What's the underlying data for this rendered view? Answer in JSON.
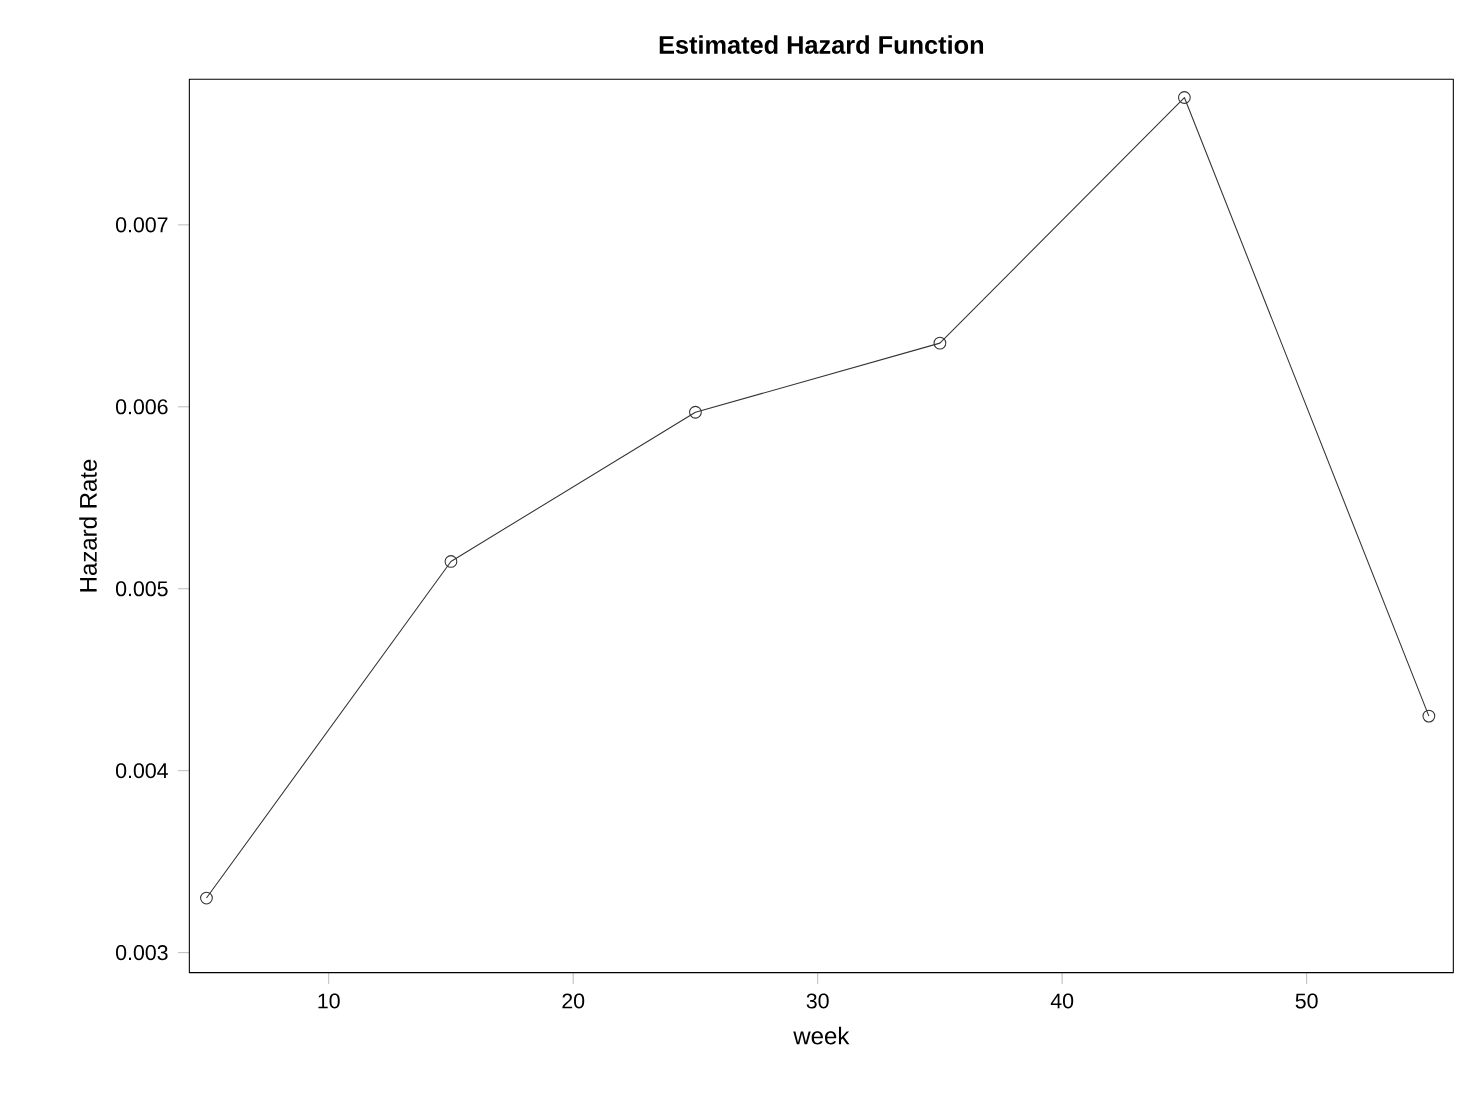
{
  "chart_data": {
    "type": "line",
    "title": "Estimated Hazard Function",
    "xlabel": "week",
    "ylabel": "Hazard Rate",
    "x": [
      5,
      15,
      25,
      35,
      45,
      55
    ],
    "series": [
      {
        "color": "#333333",
        "values": [
          0.0033,
          0.00515,
          0.00597,
          0.00635,
          0.0077,
          0.0043
        ]
      }
    ],
    "xlim": [
      4.3,
      56
    ],
    "ylim": [
      0.00289,
      0.0078
    ],
    "xticks": [
      10,
      20,
      30,
      40,
      50
    ],
    "yticks": [
      {
        "value": 0.003,
        "label": "0.003"
      },
      {
        "value": 0.004,
        "label": "0.004"
      },
      {
        "value": 0.005,
        "label": "0.005"
      },
      {
        "value": 0.006,
        "label": "0.006"
      },
      {
        "value": 0.007,
        "label": "0.007"
      }
    ],
    "marker": "circle",
    "line_style": "solid",
    "grid": false
  }
}
